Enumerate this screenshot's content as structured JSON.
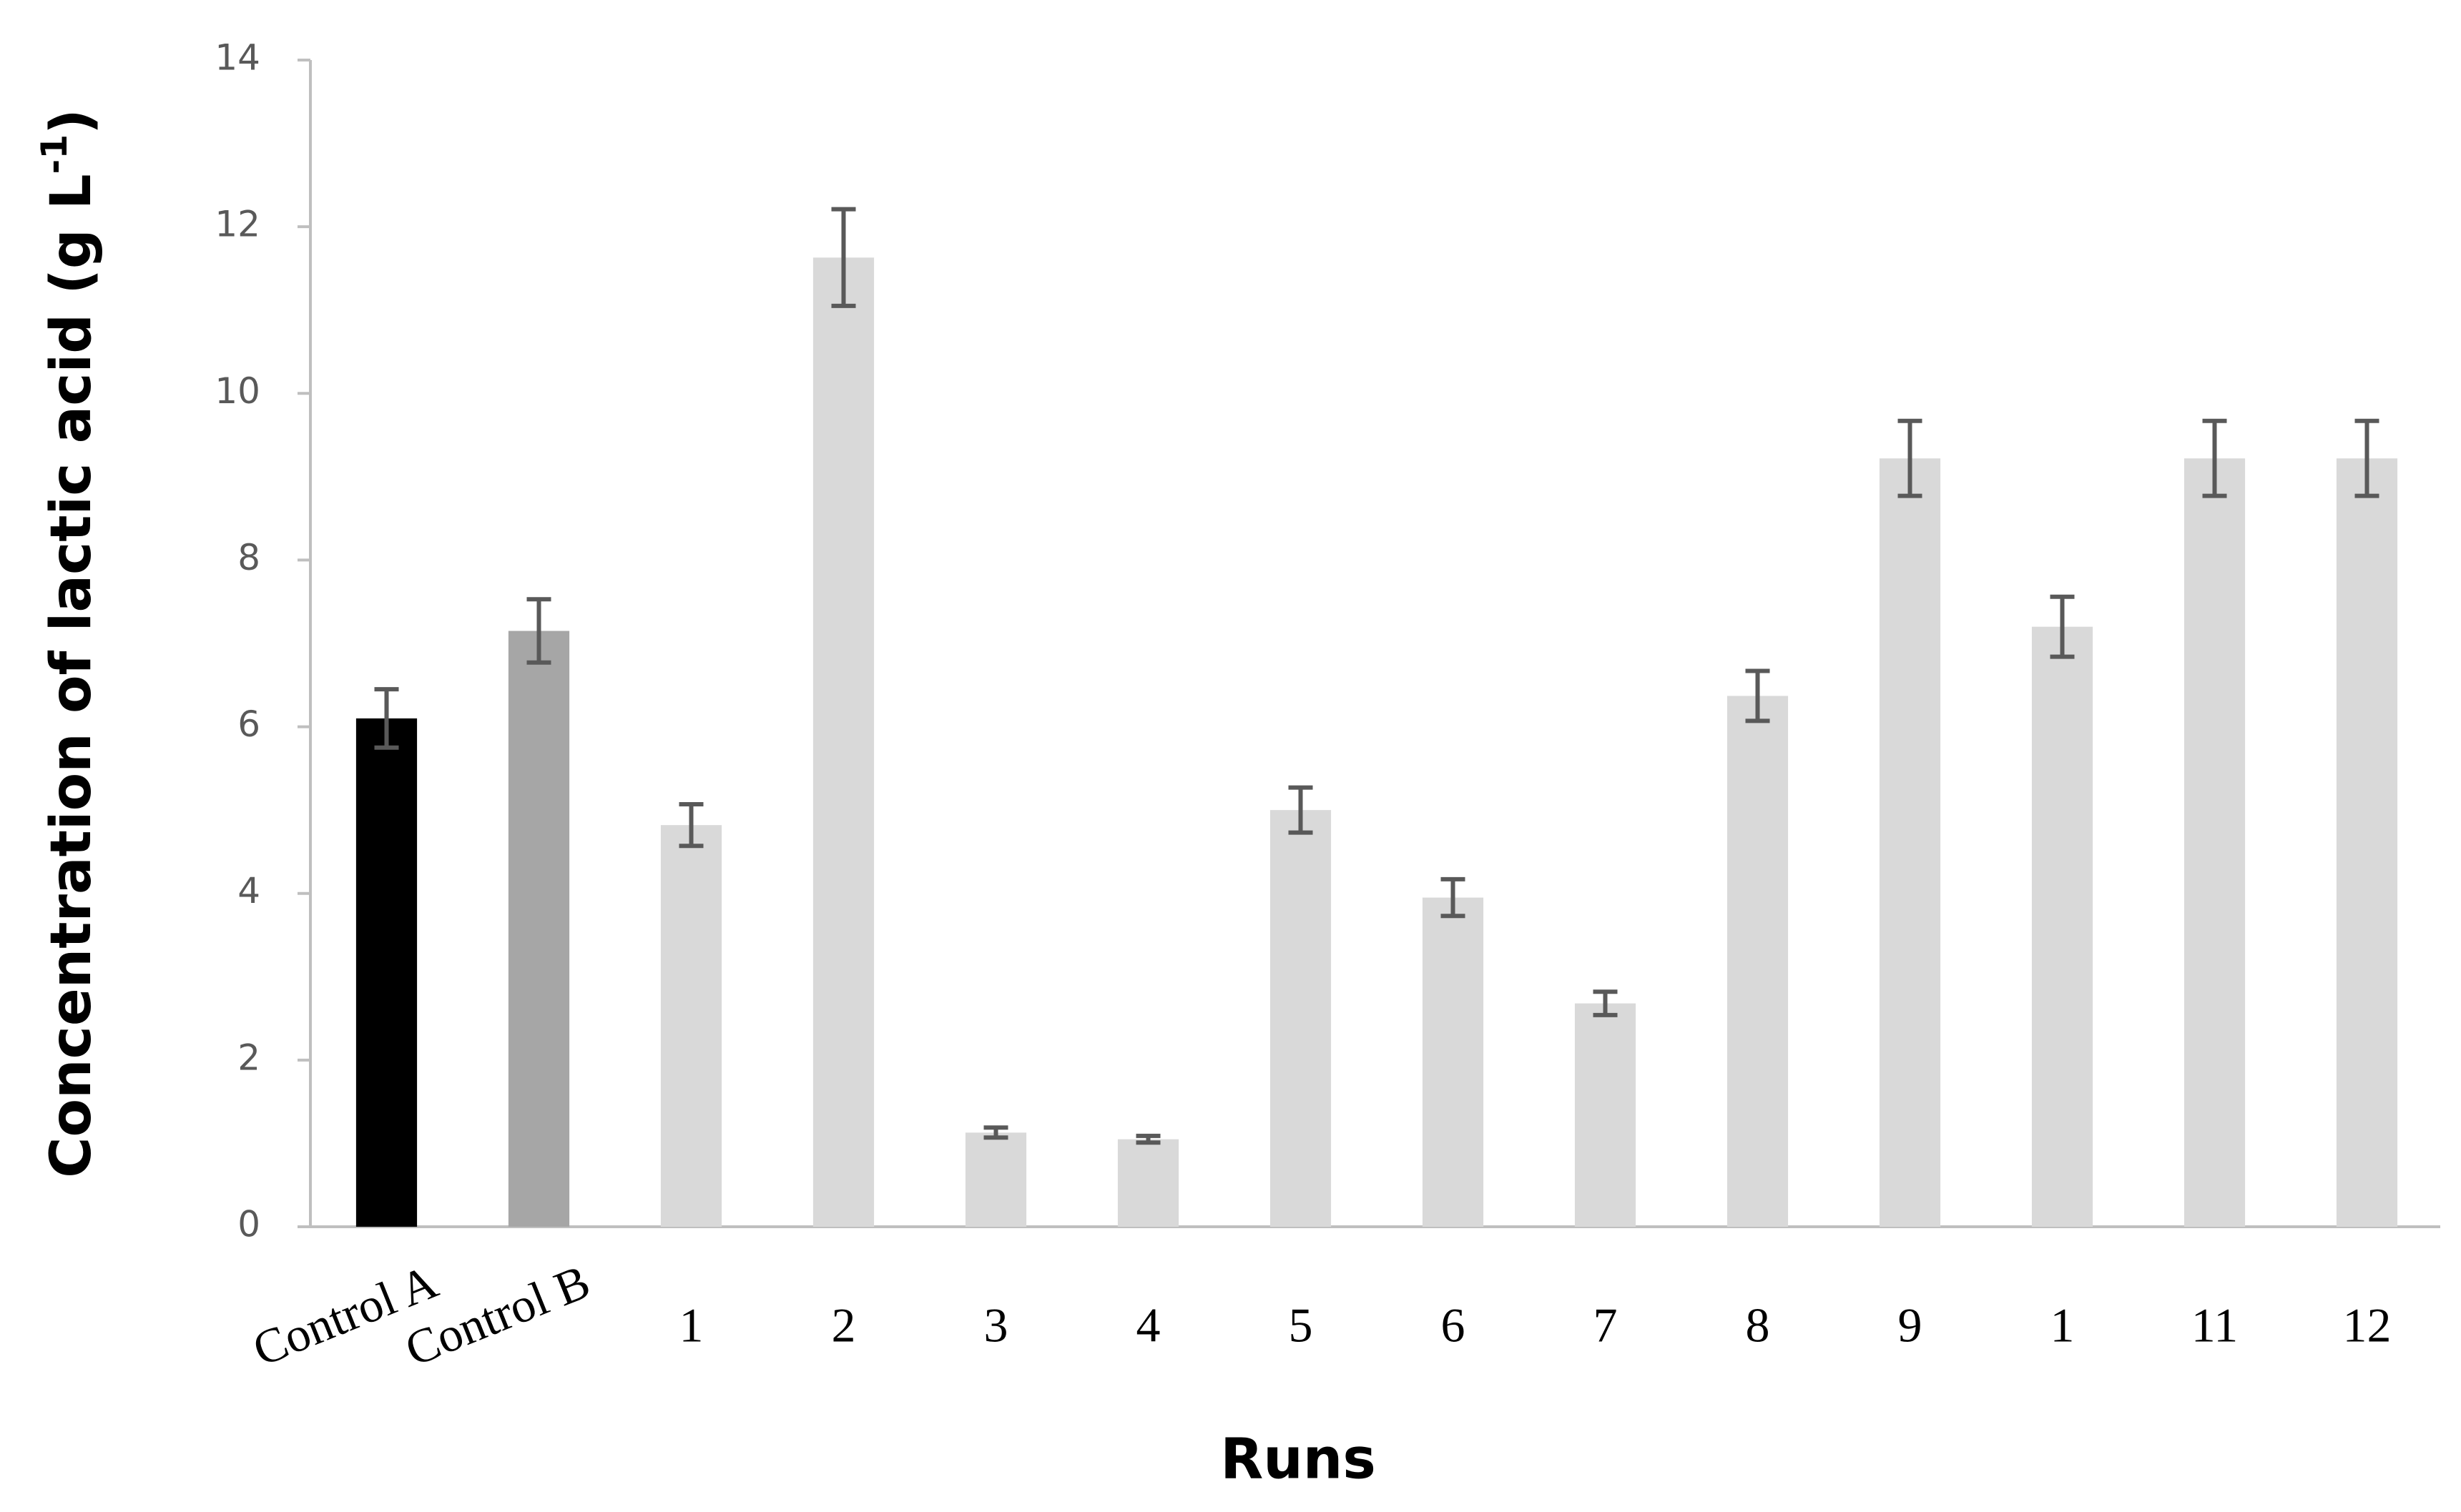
{
  "chart_data": {
    "type": "bar",
    "x_label": "Runs",
    "y_label": [
      "Concentration of lactic acid (g L",
      "-1",
      ")"
    ],
    "categories": [
      "Control A",
      "Control B",
      "1",
      "2",
      "3",
      "4",
      "5",
      "6",
      "7",
      "8",
      "9",
      "1",
      "11",
      "12"
    ],
    "values": [
      6.1,
      7.15,
      4.82,
      11.63,
      1.13,
      1.05,
      5.0,
      3.95,
      2.68,
      6.37,
      9.22,
      7.2,
      9.22,
      9.22
    ],
    "errors": [
      0.35,
      0.38,
      0.25,
      0.58,
      0.06,
      0.04,
      0.27,
      0.22,
      0.14,
      0.3,
      0.45,
      0.36,
      0.45,
      0.45
    ],
    "colors": [
      "#000000",
      "#a6a6a6",
      "#d9d9d9",
      "#d9d9d9",
      "#d9d9d9",
      "#d9d9d9",
      "#d9d9d9",
      "#d9d9d9",
      "#d9d9d9",
      "#d9d9d9",
      "#d9d9d9",
      "#d9d9d9",
      "#d9d9d9",
      "#d9d9d9"
    ],
    "error_color": "#595959",
    "ylim": [
      0,
      14
    ],
    "yticks": [
      0,
      2,
      4,
      6,
      8,
      10,
      12,
      14
    ],
    "grid": false
  }
}
